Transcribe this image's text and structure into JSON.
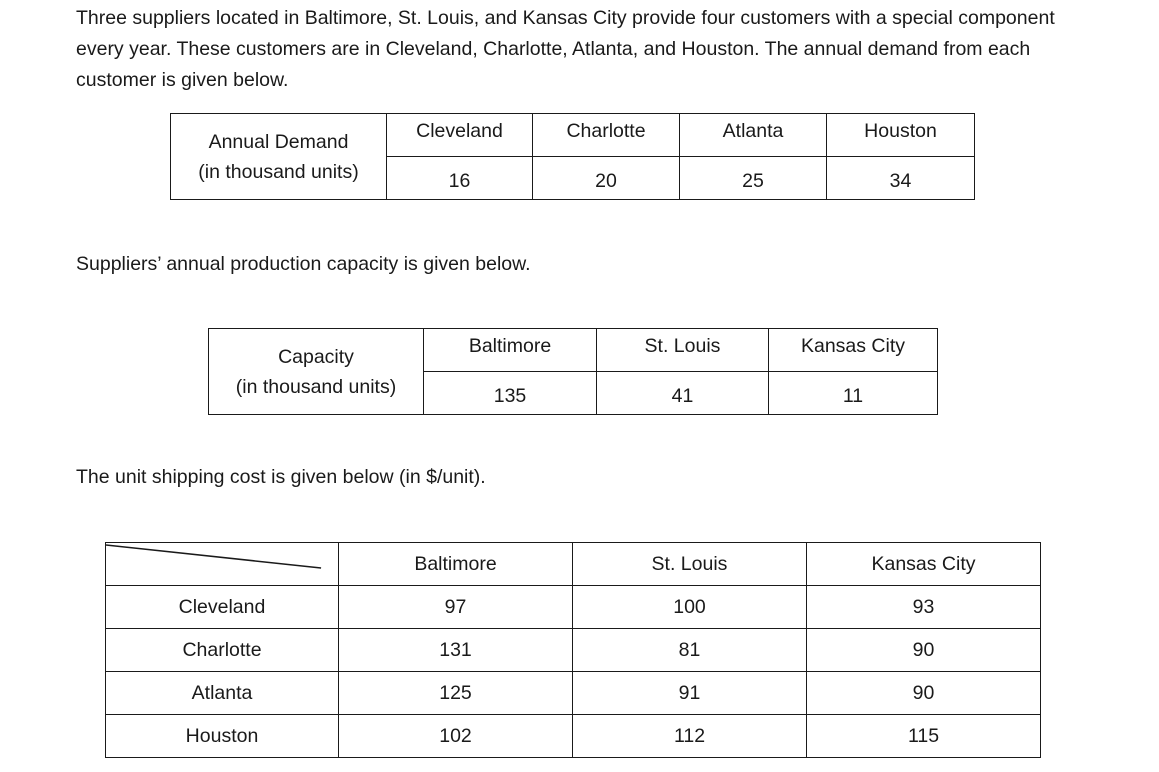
{
  "intro_text": "Three suppliers located in Baltimore, St. Louis, and Kansas City provide four customers with a special component every year. These customers are in Cleveland, Charlotte, Atlanta, and Houston. The annual demand from each customer is given below.",
  "demand_table": {
    "row_label_line1": "Annual Demand",
    "row_label_line2": "(in thousand units)",
    "customers": [
      "Cleveland",
      "Charlotte",
      "Atlanta",
      "Houston"
    ],
    "values": [
      "16",
      "20",
      "25",
      "34"
    ]
  },
  "supply_text": "Suppliers’ annual production capacity is given below.",
  "capacity_table": {
    "row_label_line1": "Capacity",
    "row_label_line2": "(in thousand units)",
    "suppliers": [
      "Baltimore",
      "St. Louis",
      "Kansas City"
    ],
    "values": [
      "135",
      "41",
      "11"
    ]
  },
  "cost_text": "The unit shipping cost is given below (in $/unit).",
  "cost_table": {
    "suppliers": [
      "Baltimore",
      "St. Louis",
      "Kansas City"
    ],
    "rows": [
      {
        "customer": "Cleveland",
        "costs": [
          "97",
          "100",
          "93"
        ]
      },
      {
        "customer": "Charlotte",
        "costs": [
          "131",
          "81",
          "90"
        ]
      },
      {
        "customer": "Atlanta",
        "costs": [
          "125",
          "91",
          "90"
        ]
      },
      {
        "customer": "Houston",
        "costs": [
          "102",
          "112",
          "115"
        ]
      }
    ]
  }
}
